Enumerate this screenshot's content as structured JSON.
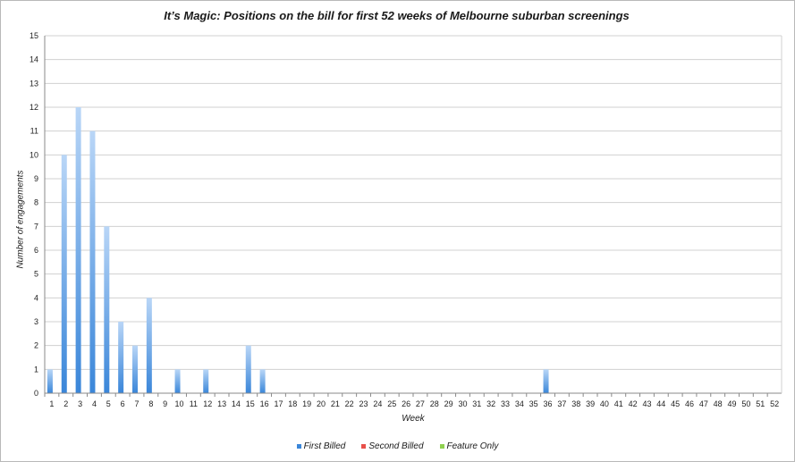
{
  "chart_data": {
    "type": "bar",
    "title": "It’s Magic: Positions on the bill for first 52 weeks of Melbourne suburban screenings",
    "xlabel": "Week",
    "ylabel": "Number of engagements",
    "ylim": [
      0,
      15
    ],
    "yticks": [
      0,
      1,
      2,
      3,
      4,
      5,
      6,
      7,
      8,
      9,
      10,
      11,
      12,
      13,
      14,
      15
    ],
    "grid": true,
    "legend_position": "bottom",
    "categories": [
      "1",
      "2",
      "3",
      "4",
      "5",
      "6",
      "7",
      "8",
      "9",
      "10",
      "11",
      "12",
      "13",
      "14",
      "15",
      "16",
      "17",
      "18",
      "19",
      "20",
      "21",
      "22",
      "23",
      "24",
      "25",
      "26",
      "27",
      "28",
      "29",
      "30",
      "31",
      "32",
      "33",
      "34",
      "35",
      "36",
      "37",
      "38",
      "39",
      "40",
      "41",
      "42",
      "43",
      "44",
      "45",
      "46",
      "47",
      "48",
      "49",
      "50",
      "51",
      "52"
    ],
    "series": [
      {
        "name": "First Billed",
        "color": "#3a86d9",
        "values": [
          1,
          10,
          12,
          11,
          7,
          3,
          2,
          4,
          0,
          1,
          0,
          1,
          0,
          0,
          2,
          1,
          0,
          0,
          0,
          0,
          0,
          0,
          0,
          0,
          0,
          0,
          0,
          0,
          0,
          0,
          0,
          0,
          0,
          0,
          0,
          1,
          0,
          0,
          0,
          0,
          0,
          0,
          0,
          0,
          0,
          0,
          0,
          0,
          0,
          0,
          0,
          0
        ]
      },
      {
        "name": "Second Billed",
        "color": "#e8504a",
        "values": [
          0,
          0,
          0,
          0,
          0,
          0,
          0,
          0,
          0,
          0,
          0,
          0,
          0,
          0,
          0,
          0,
          0,
          0,
          0,
          0,
          0,
          0,
          0,
          0,
          0,
          0,
          0,
          0,
          0,
          0,
          0,
          0,
          0,
          0,
          0,
          0,
          0,
          0,
          0,
          0,
          0,
          0,
          0,
          0,
          0,
          0,
          0,
          0,
          0,
          0,
          0,
          0
        ]
      },
      {
        "name": "Feature Only",
        "color": "#8fd14f",
        "values": [
          0,
          0,
          0,
          0,
          0,
          0,
          0,
          0,
          0,
          0,
          0,
          0,
          0,
          0,
          0,
          0,
          0,
          0,
          0,
          0,
          0,
          0,
          0,
          0,
          0,
          0,
          0,
          0,
          0,
          0,
          0,
          0,
          0,
          0,
          0,
          0,
          0,
          0,
          0,
          0,
          0,
          0,
          0,
          0,
          0,
          0,
          0,
          0,
          0,
          0,
          0,
          0
        ]
      }
    ]
  }
}
